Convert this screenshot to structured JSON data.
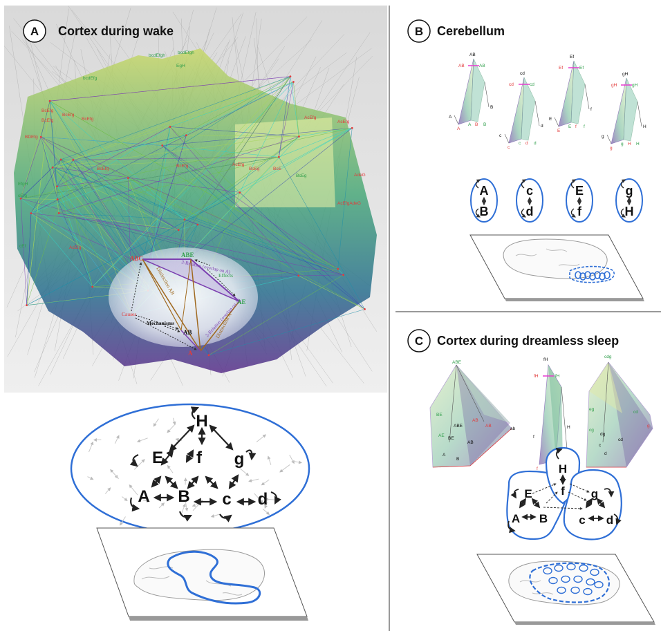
{
  "colors": {
    "blue": "#2f6fd6",
    "red": "#e23b3b",
    "green": "#2f9e4a",
    "purple": "#7b3fb0",
    "brown": "#a0691f",
    "dark": "#111111"
  },
  "panel_a": {
    "letter": "A",
    "title": "Cortex during wake",
    "structure_labels": {
      "causes": "Causes",
      "effects": "Effects",
      "mechanisms": "Mechanisms",
      "distinction_ab": "Distinction AB",
      "distinction_a": "Distinction A",
      "relation_upper": "3-Relation (overlap on A)",
      "relation_lower": "2-Relation (overlap on A)",
      "abc": "ABC",
      "abe": "ABE",
      "ae": "AE",
      "ab": "AB",
      "a": "A"
    },
    "top_labels": [
      "bcdEfgh",
      "bcdEfgh",
      "bcdEfg",
      "EgH"
    ],
    "left_labels": [
      "BcEfg",
      "BcEfg",
      "BcEfg",
      "BcEfg",
      "BcEfg",
      "BDEfg",
      "EfgH",
      "cEfg",
      "cEf"
    ],
    "right_labels": [
      "AcEfg",
      "AcEfg",
      "AdeG",
      "AcEfgAdeG"
    ],
    "middle_labels": [
      "BcEfg",
      "AcEfg",
      "BcEg",
      "BcE",
      "BcEg",
      "AcEfg"
    ],
    "network_nodes": [
      "A",
      "B",
      "E",
      "f",
      "g",
      "c",
      "d",
      "H"
    ]
  },
  "panel_b": {
    "letter": "B",
    "title": "Cerebellum",
    "pyramids": [
      {
        "top": "AB",
        "left": "AB",
        "right": "AB",
        "base": [
          "A",
          "A",
          "B",
          "B"
        ],
        "side_left": "A",
        "side_right": "B"
      },
      {
        "top": "cd",
        "left": "cd",
        "right": "cd",
        "base": [
          "c",
          "c",
          "d",
          "d"
        ],
        "side_left": "c",
        "side_right": "d"
      },
      {
        "top": "Ef",
        "left": "Ef",
        "right": "Ef",
        "base": [
          "E",
          "E",
          "f",
          "f"
        ],
        "side_left": "E",
        "side_right": "f"
      },
      {
        "top": "gH",
        "left": "gH",
        "right": "gH",
        "base": [
          "g",
          "g",
          "H",
          "H"
        ],
        "side_left": "g",
        "side_right": "H"
      }
    ],
    "modules": [
      {
        "top": "A",
        "bottom": "B"
      },
      {
        "top": "c",
        "bottom": "d"
      },
      {
        "top": "E",
        "bottom": "f"
      },
      {
        "top": "g",
        "bottom": "H"
      }
    ]
  },
  "panel_c": {
    "letter": "C",
    "title": "Cortex during dreamless sleep",
    "pyramid_top_labels": [
      "ABE",
      "fH",
      "cdg"
    ],
    "left_pyramid_labels": [
      "BE",
      "ABE",
      "AB",
      "AE",
      "BE",
      "AB",
      "AB",
      "ab",
      "A",
      "B"
    ],
    "middle_pyramid_labels": [
      "fH",
      "fH",
      "f",
      "H",
      "f",
      "f",
      "H",
      "H"
    ],
    "right_pyramid_labels": [
      "eg",
      "cd",
      "cg",
      "dg",
      "cd",
      "c",
      "d",
      "g"
    ],
    "modules": [
      {
        "nodes": [
          "E",
          "A",
          "B"
        ]
      },
      {
        "nodes": [
          "H",
          "f"
        ]
      },
      {
        "nodes": [
          "g",
          "c",
          "d"
        ]
      }
    ]
  }
}
